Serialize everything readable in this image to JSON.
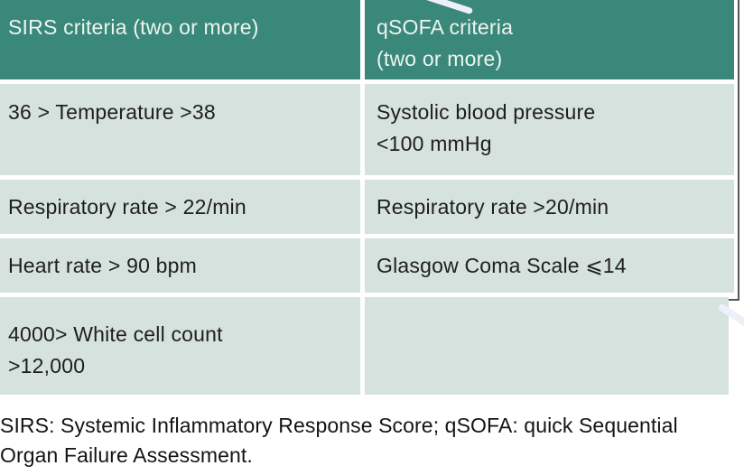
{
  "table": {
    "columns": [
      {
        "header": "SIRS criteria (two or more)"
      },
      {
        "header": "qSOFA criteria\n(two or more)"
      }
    ],
    "rows": [
      {
        "sirs": "36 > Temperature >38",
        "qsofa": "Systolic blood pressure\n<100 mmHg"
      },
      {
        "sirs": "Respiratory rate > 22/min",
        "qsofa": "Respiratory rate >20/min"
      },
      {
        "sirs": "Heart rate > 90 bpm",
        "qsofa": "Glasgow Coma Scale ⩽14"
      },
      {
        "sirs": "4000> White cell count\n>12,000",
        "qsofa": ""
      }
    ],
    "footnote": "SIRS: Systemic Inflammatory Response Score; qSOFA: quick Sequential\nOrgan Failure Assessment."
  },
  "colors": {
    "header_bg": "#3a8879",
    "cell_bg": "#d5e2de",
    "header_text": "#edf4f1",
    "body_text": "#1e1e1e",
    "frame_border": "#53565c"
  }
}
